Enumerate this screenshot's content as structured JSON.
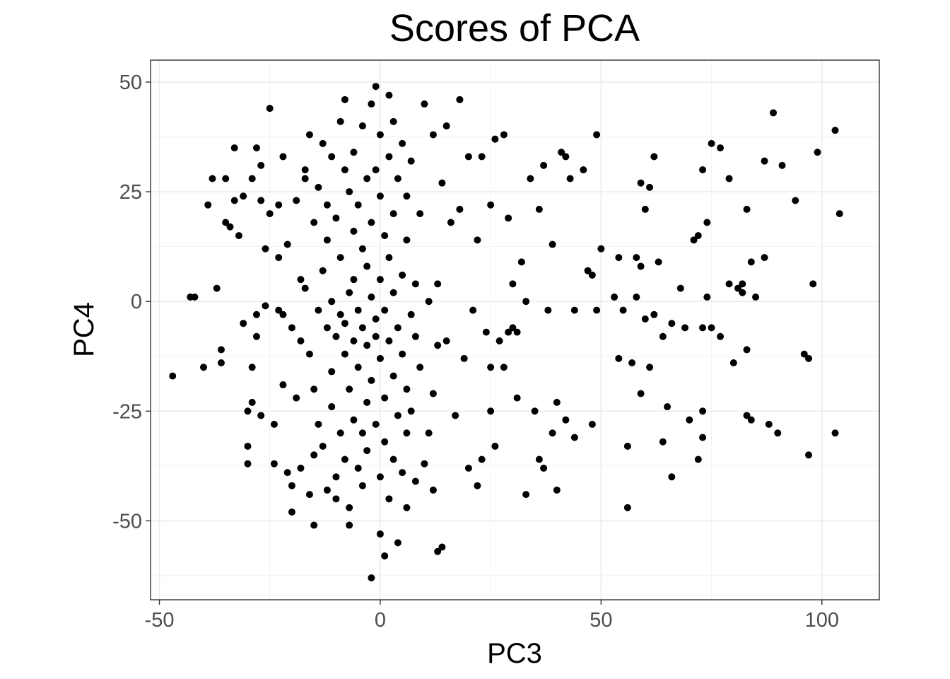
{
  "chart_data": {
    "type": "scatter",
    "title": "Scores of PCA",
    "xlabel": "PC3",
    "ylabel": "PC4",
    "xlim": [
      -52,
      113
    ],
    "ylim": [
      -68,
      55
    ],
    "xticks": [
      -50,
      0,
      50,
      100
    ],
    "xtick_labels": [
      "-50",
      "0",
      "50",
      "100"
    ],
    "yticks": [
      -50,
      -25,
      0,
      25,
      50
    ],
    "ytick_labels": [
      "-50",
      "-25",
      "0",
      "25",
      "50"
    ],
    "grid": true,
    "legend": "none",
    "point_color": "#000000",
    "series": [
      {
        "points": [
          [
            -47,
            -17
          ],
          [
            -43,
            1
          ],
          [
            -42,
            1
          ],
          [
            -40,
            -15
          ],
          [
            -39,
            22
          ],
          [
            -38,
            28
          ],
          [
            -37,
            3
          ],
          [
            -36,
            -11
          ],
          [
            -36,
            -14
          ],
          [
            -35,
            28
          ],
          [
            -35,
            18
          ],
          [
            -34,
            17
          ],
          [
            -33,
            35
          ],
          [
            -33,
            23
          ],
          [
            -32,
            15
          ],
          [
            -31,
            -5
          ],
          [
            -31,
            24
          ],
          [
            -30,
            -33
          ],
          [
            -30,
            -37
          ],
          [
            -30,
            -25
          ],
          [
            -29,
            -23
          ],
          [
            -29,
            28
          ],
          [
            -29,
            -15
          ],
          [
            -28,
            -8
          ],
          [
            -28,
            -3
          ],
          [
            -28,
            35
          ],
          [
            -27,
            31
          ],
          [
            -27,
            23
          ],
          [
            -27,
            -26
          ],
          [
            -26,
            -1
          ],
          [
            -26,
            12
          ],
          [
            -25,
            20
          ],
          [
            -25,
            44
          ],
          [
            -24,
            -28
          ],
          [
            -24,
            -37
          ],
          [
            -23,
            -2
          ],
          [
            -23,
            10
          ],
          [
            -23,
            22
          ],
          [
            -22,
            -3
          ],
          [
            -22,
            -19
          ],
          [
            -22,
            33
          ],
          [
            -21,
            -39
          ],
          [
            -21,
            13
          ],
          [
            -20,
            -42
          ],
          [
            -20,
            -48
          ],
          [
            -20,
            -6
          ],
          [
            -19,
            -22
          ],
          [
            -19,
            23
          ],
          [
            -18,
            5
          ],
          [
            -18,
            -9
          ],
          [
            -18,
            -38
          ],
          [
            -17,
            28
          ],
          [
            -17,
            30
          ],
          [
            -17,
            3
          ],
          [
            -16,
            -44
          ],
          [
            -16,
            -12
          ],
          [
            -16,
            38
          ],
          [
            -15,
            -51
          ],
          [
            -15,
            -35
          ],
          [
            -15,
            -20
          ],
          [
            -15,
            18
          ],
          [
            -14,
            -2
          ],
          [
            -14,
            -28
          ],
          [
            -14,
            26
          ],
          [
            -13,
            7
          ],
          [
            -13,
            -33
          ],
          [
            -13,
            36
          ],
          [
            -12,
            -6
          ],
          [
            -12,
            -43
          ],
          [
            -12,
            14
          ],
          [
            -12,
            22
          ],
          [
            -11,
            -16
          ],
          [
            -11,
            -24
          ],
          [
            -11,
            0
          ],
          [
            -11,
            33
          ],
          [
            -10,
            -45
          ],
          [
            -10,
            -8
          ],
          [
            -10,
            19
          ],
          [
            -10,
            -40
          ],
          [
            -9,
            41
          ],
          [
            -9,
            -30
          ],
          [
            -9,
            10
          ],
          [
            -9,
            -3
          ],
          [
            -8,
            -5
          ],
          [
            -8,
            30
          ],
          [
            -8,
            -12
          ],
          [
            -8,
            46
          ],
          [
            -8,
            -36
          ],
          [
            -7,
            -51
          ],
          [
            -7,
            -47
          ],
          [
            -7,
            -20
          ],
          [
            -7,
            2
          ],
          [
            -7,
            25
          ],
          [
            -6,
            -27
          ],
          [
            -6,
            16
          ],
          [
            -6,
            -9
          ],
          [
            -6,
            5
          ],
          [
            -6,
            34
          ],
          [
            -5,
            -38
          ],
          [
            -5,
            -2
          ],
          [
            -5,
            -15
          ],
          [
            -5,
            22
          ],
          [
            -4,
            -42
          ],
          [
            -4,
            -30
          ],
          [
            -4,
            12
          ],
          [
            -4,
            40
          ],
          [
            -4,
            -6
          ],
          [
            -3,
            -23
          ],
          [
            -3,
            28
          ],
          [
            -3,
            -10
          ],
          [
            -3,
            8
          ],
          [
            -3,
            -34
          ],
          [
            -2,
            1
          ],
          [
            -2,
            -18
          ],
          [
            -2,
            18
          ],
          [
            -2,
            45
          ],
          [
            -2,
            -63
          ],
          [
            -1,
            -28
          ],
          [
            -1,
            -8
          ],
          [
            -1,
            30
          ],
          [
            -1,
            -4
          ],
          [
            -1,
            49
          ],
          [
            0,
            -53
          ],
          [
            0,
            -40
          ],
          [
            0,
            -13
          ],
          [
            0,
            5
          ],
          [
            0,
            24
          ],
          [
            0,
            38
          ],
          [
            1,
            -58
          ],
          [
            1,
            -32
          ],
          [
            1,
            -2
          ],
          [
            1,
            15
          ],
          [
            1,
            -22
          ],
          [
            2,
            -45
          ],
          [
            2,
            -9
          ],
          [
            2,
            10
          ],
          [
            2,
            33
          ],
          [
            2,
            47
          ],
          [
            3,
            -36
          ],
          [
            3,
            -17
          ],
          [
            3,
            2
          ],
          [
            3,
            20
          ],
          [
            3,
            41
          ],
          [
            4,
            -55
          ],
          [
            4,
            -26
          ],
          [
            4,
            -6
          ],
          [
            4,
            28
          ],
          [
            5,
            -39
          ],
          [
            5,
            -12
          ],
          [
            5,
            6
          ],
          [
            5,
            36
          ],
          [
            6,
            -47
          ],
          [
            6,
            -30
          ],
          [
            6,
            -20
          ],
          [
            6,
            14
          ],
          [
            6,
            24
          ],
          [
            7,
            -3
          ],
          [
            7,
            -25
          ],
          [
            7,
            32
          ],
          [
            8,
            -8
          ],
          [
            8,
            4
          ],
          [
            8,
            -41
          ],
          [
            9,
            20
          ],
          [
            9,
            -15
          ],
          [
            10,
            45
          ],
          [
            10,
            -37
          ],
          [
            11,
            0
          ],
          [
            11,
            -30
          ],
          [
            12,
            38
          ],
          [
            12,
            -43
          ],
          [
            12,
            -21
          ],
          [
            13,
            4
          ],
          [
            13,
            -10
          ],
          [
            13,
            -57
          ],
          [
            14,
            -56
          ],
          [
            14,
            27
          ],
          [
            15,
            -9
          ],
          [
            15,
            40
          ],
          [
            16,
            18
          ],
          [
            17,
            -26
          ],
          [
            18,
            21
          ],
          [
            18,
            46
          ],
          [
            19,
            -13
          ],
          [
            20,
            -38
          ],
          [
            20,
            33
          ],
          [
            21,
            -2
          ],
          [
            22,
            -42
          ],
          [
            22,
            14
          ],
          [
            23,
            -36
          ],
          [
            23,
            33
          ],
          [
            24,
            -7
          ],
          [
            25,
            -15
          ],
          [
            25,
            -25
          ],
          [
            25,
            22
          ],
          [
            26,
            -33
          ],
          [
            26,
            37
          ],
          [
            27,
            -9
          ],
          [
            28,
            -15
          ],
          [
            28,
            38
          ],
          [
            29,
            19
          ],
          [
            29,
            -7
          ],
          [
            30,
            4
          ],
          [
            30,
            -6
          ],
          [
            31,
            -22
          ],
          [
            31,
            -7
          ],
          [
            32,
            9
          ],
          [
            33,
            0
          ],
          [
            33,
            -44
          ],
          [
            34,
            28
          ],
          [
            35,
            -25
          ],
          [
            36,
            -36
          ],
          [
            36,
            21
          ],
          [
            37,
            -38
          ],
          [
            37,
            31
          ],
          [
            38,
            -2
          ],
          [
            39,
            13
          ],
          [
            39,
            -30
          ],
          [
            40,
            -43
          ],
          [
            40,
            -23
          ],
          [
            41,
            34
          ],
          [
            42,
            33
          ],
          [
            42,
            -27
          ],
          [
            43,
            28
          ],
          [
            44,
            -31
          ],
          [
            44,
            -2
          ],
          [
            46,
            30
          ],
          [
            47,
            7
          ],
          [
            48,
            -28
          ],
          [
            48,
            6
          ],
          [
            49,
            38
          ],
          [
            49,
            -2
          ],
          [
            50,
            12
          ],
          [
            53,
            1
          ],
          [
            54,
            -13
          ],
          [
            54,
            10
          ],
          [
            55,
            -2
          ],
          [
            56,
            -33
          ],
          [
            56,
            -47
          ],
          [
            57,
            -14
          ],
          [
            58,
            1
          ],
          [
            58,
            10
          ],
          [
            59,
            8
          ],
          [
            59,
            -21
          ],
          [
            59,
            27
          ],
          [
            60,
            21
          ],
          [
            60,
            -4
          ],
          [
            61,
            26
          ],
          [
            61,
            -15
          ],
          [
            62,
            33
          ],
          [
            62,
            -3
          ],
          [
            63,
            9
          ],
          [
            64,
            -32
          ],
          [
            64,
            -8
          ],
          [
            65,
            -24
          ],
          [
            66,
            -5
          ],
          [
            66,
            -40
          ],
          [
            68,
            3
          ],
          [
            69,
            -6
          ],
          [
            70,
            -27
          ],
          [
            71,
            14
          ],
          [
            72,
            15
          ],
          [
            72,
            -36
          ],
          [
            73,
            -25
          ],
          [
            73,
            -31
          ],
          [
            73,
            30
          ],
          [
            73,
            -6
          ],
          [
            74,
            1
          ],
          [
            74,
            18
          ],
          [
            75,
            -6
          ],
          [
            75,
            36
          ],
          [
            77,
            -8
          ],
          [
            77,
            35
          ],
          [
            79,
            28
          ],
          [
            79,
            4
          ],
          [
            80,
            -14
          ],
          [
            81,
            3
          ],
          [
            82,
            4
          ],
          [
            82,
            2
          ],
          [
            83,
            -26
          ],
          [
            83,
            -11
          ],
          [
            83,
            21
          ],
          [
            84,
            9
          ],
          [
            84,
            -27
          ],
          [
            85,
            1
          ],
          [
            87,
            32
          ],
          [
            87,
            10
          ],
          [
            88,
            -28
          ],
          [
            89,
            43
          ],
          [
            90,
            -30
          ],
          [
            91,
            31
          ],
          [
            94,
            23
          ],
          [
            96,
            -12
          ],
          [
            97,
            -35
          ],
          [
            97,
            -13
          ],
          [
            98,
            4
          ],
          [
            99,
            34
          ],
          [
            103,
            -30
          ],
          [
            103,
            39
          ],
          [
            104,
            20
          ]
        ]
      }
    ]
  }
}
